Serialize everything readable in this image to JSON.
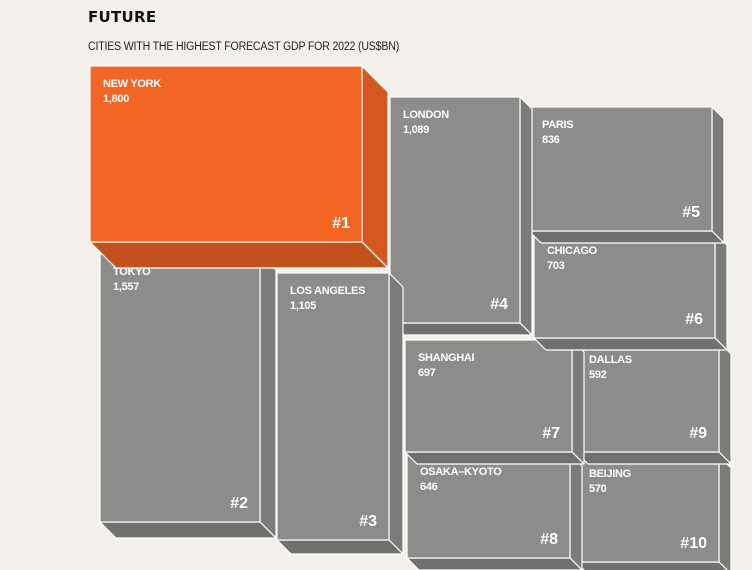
{
  "heading": "FUTURE",
  "chart_data": {
    "type": "table",
    "title": "CITIES WITH THE HIGHEST FORECAST GDP FOR 2022 (US$BN)",
    "colors": {
      "highlight": "#f26522",
      "base": "#8c8c8a",
      "edge": "#ffffff"
    },
    "cities": [
      {
        "rank": "#1",
        "city": "NEW YORK",
        "value": "1,800"
      },
      {
        "rank": "#2",
        "city": "TOKYO",
        "value": "1,557"
      },
      {
        "rank": "#3",
        "city": "LOS ANGELES",
        "value": "1,105"
      },
      {
        "rank": "#4",
        "city": "LONDON",
        "value": "1,089"
      },
      {
        "rank": "#5",
        "city": "PARIS",
        "value": "836"
      },
      {
        "rank": "#6",
        "city": "CHICAGO",
        "value": "703"
      },
      {
        "rank": "#7",
        "city": "SHANGHAI",
        "value": "697"
      },
      {
        "rank": "#8",
        "city": "OSAKA–KYOTO",
        "value": "646"
      },
      {
        "rank": "#9",
        "city": "DALLAS",
        "value": "592"
      },
      {
        "rank": "#10",
        "city": "BEIJING",
        "value": "570"
      }
    ]
  }
}
